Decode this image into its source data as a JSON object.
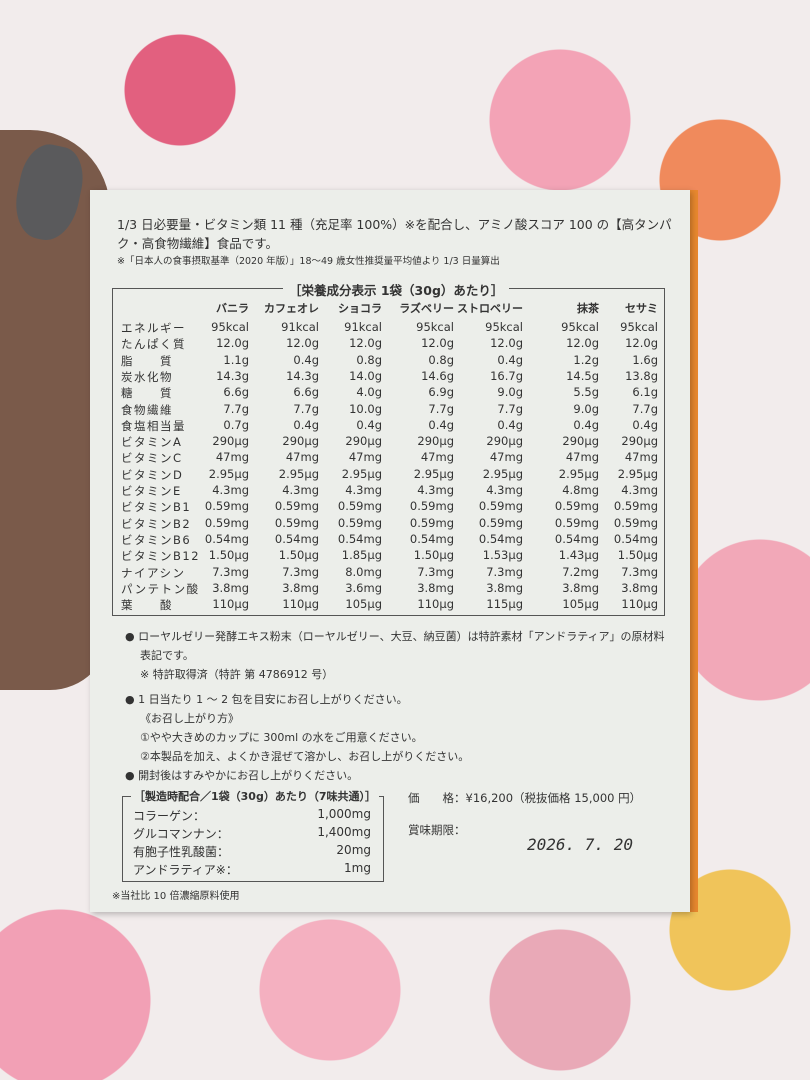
{
  "intro": "1/3 日必要量・ビタミン類 11 種（充足率 100%）※を配合し、アミノ酸スコア 100 の【高タンパク・高食物繊維】食品です。",
  "note": "※「日本人の食事摂取基準（2020 年版）」18〜49 歳女性推奨量平均値より 1/3 日量算出",
  "nutrition": {
    "title": "［栄養成分表示 1袋（30g）あたり］",
    "flavors": [
      "バニラ",
      "カフェオレ",
      "ショコラ",
      "ラズベリー",
      "ストロベリー",
      "抹茶",
      "セサミ"
    ],
    "rows": [
      {
        "label": "エネルギー",
        "values": [
          "95kcal",
          "91kcal",
          "91kcal",
          "95kcal",
          "95kcal",
          "95kcal",
          "95kcal"
        ]
      },
      {
        "label": "たんぱく質",
        "values": [
          "12.0g",
          "12.0g",
          "12.0g",
          "12.0g",
          "12.0g",
          "12.0g",
          "12.0g"
        ]
      },
      {
        "label": "脂　　質",
        "values": [
          "1.1g",
          "0.4g",
          "0.8g",
          "0.8g",
          "0.4g",
          "1.2g",
          "1.6g"
        ]
      },
      {
        "label": "炭水化物",
        "values": [
          "14.3g",
          "14.3g",
          "14.0g",
          "14.6g",
          "16.7g",
          "14.5g",
          "13.8g"
        ]
      },
      {
        "label": "糖　　質",
        "values": [
          "6.6g",
          "6.6g",
          "4.0g",
          "6.9g",
          "9.0g",
          "5.5g",
          "6.1g"
        ]
      },
      {
        "label": "食物繊維",
        "values": [
          "7.7g",
          "7.7g",
          "10.0g",
          "7.7g",
          "7.7g",
          "9.0g",
          "7.7g"
        ]
      },
      {
        "label": "食塩相当量",
        "values": [
          "0.7g",
          "0.4g",
          "0.4g",
          "0.4g",
          "0.4g",
          "0.4g",
          "0.4g"
        ]
      },
      {
        "label": "ビタミンA",
        "values": [
          "290μg",
          "290μg",
          "290μg",
          "290μg",
          "290μg",
          "290μg",
          "290μg"
        ]
      },
      {
        "label": "ビタミンC",
        "values": [
          "47mg",
          "47mg",
          "47mg",
          "47mg",
          "47mg",
          "47mg",
          "47mg"
        ]
      },
      {
        "label": "ビタミンD",
        "values": [
          "2.95μg",
          "2.95μg",
          "2.95μg",
          "2.95μg",
          "2.95μg",
          "2.95μg",
          "2.95μg"
        ]
      },
      {
        "label": "ビタミンE",
        "values": [
          "4.3mg",
          "4.3mg",
          "4.3mg",
          "4.3mg",
          "4.3mg",
          "4.8mg",
          "4.3mg"
        ]
      },
      {
        "label": "ビタミンB1",
        "values": [
          "0.59mg",
          "0.59mg",
          "0.59mg",
          "0.59mg",
          "0.59mg",
          "0.59mg",
          "0.59mg"
        ]
      },
      {
        "label": "ビタミンB2",
        "values": [
          "0.59mg",
          "0.59mg",
          "0.59mg",
          "0.59mg",
          "0.59mg",
          "0.59mg",
          "0.59mg"
        ]
      },
      {
        "label": "ビタミンB6",
        "values": [
          "0.54mg",
          "0.54mg",
          "0.54mg",
          "0.54mg",
          "0.54mg",
          "0.54mg",
          "0.54mg"
        ]
      },
      {
        "label": "ビタミンB12",
        "values": [
          "1.50μg",
          "1.50μg",
          "1.85μg",
          "1.50μg",
          "1.53μg",
          "1.43μg",
          "1.50μg"
        ]
      },
      {
        "label": "ナイアシン",
        "values": [
          "7.3mg",
          "7.3mg",
          "8.0mg",
          "7.3mg",
          "7.3mg",
          "7.2mg",
          "7.3mg"
        ]
      },
      {
        "label": "パンテトン酸",
        "values": [
          "3.8mg",
          "3.8mg",
          "3.6mg",
          "3.8mg",
          "3.8mg",
          "3.8mg",
          "3.8mg"
        ]
      },
      {
        "label": "葉　　酸",
        "values": [
          "110μg",
          "110μg",
          "105μg",
          "110μg",
          "115μg",
          "105μg",
          "110μg"
        ]
      }
    ]
  },
  "bullets": [
    "● ローヤルゼリー発酵エキス粉末（ローヤルゼリー、大豆、納豆菌）は特許素材「アンドラティア」の原材料",
    "表記です。",
    "※ 特許取得済（特許 第 4786912 号）",
    "● 1 日当たり 1 〜 2 包を目安にお召し上がりください。",
    "《お召し上がり方》",
    "①やや大きめのカップに 300ml の水をご用意ください。",
    "②本製品を加え、よくかき混ぜて溶かし、お召し上がりください。",
    "● 開封後はすみやかにお召し上がりください。"
  ],
  "mix": {
    "title": "［製造時配合／1袋（30g）あたり（7味共通）］",
    "rows": [
      {
        "label": "コラーゲン：",
        "value": "1,000mg"
      },
      {
        "label": "グルコマンナン：",
        "value": "1,400mg"
      },
      {
        "label": "有胞子性乳酸菌：",
        "value": "20mg"
      },
      {
        "label": "アンドラティア※：",
        "value": "1mg"
      }
    ],
    "footnote": "※当社比 10 倍濃縮原料使用"
  },
  "price": "価　　格：¥16,200（税抜価格 15,000 円）",
  "expiry_label": "賞味期限：",
  "expiry_date": "2026. 7. 20"
}
